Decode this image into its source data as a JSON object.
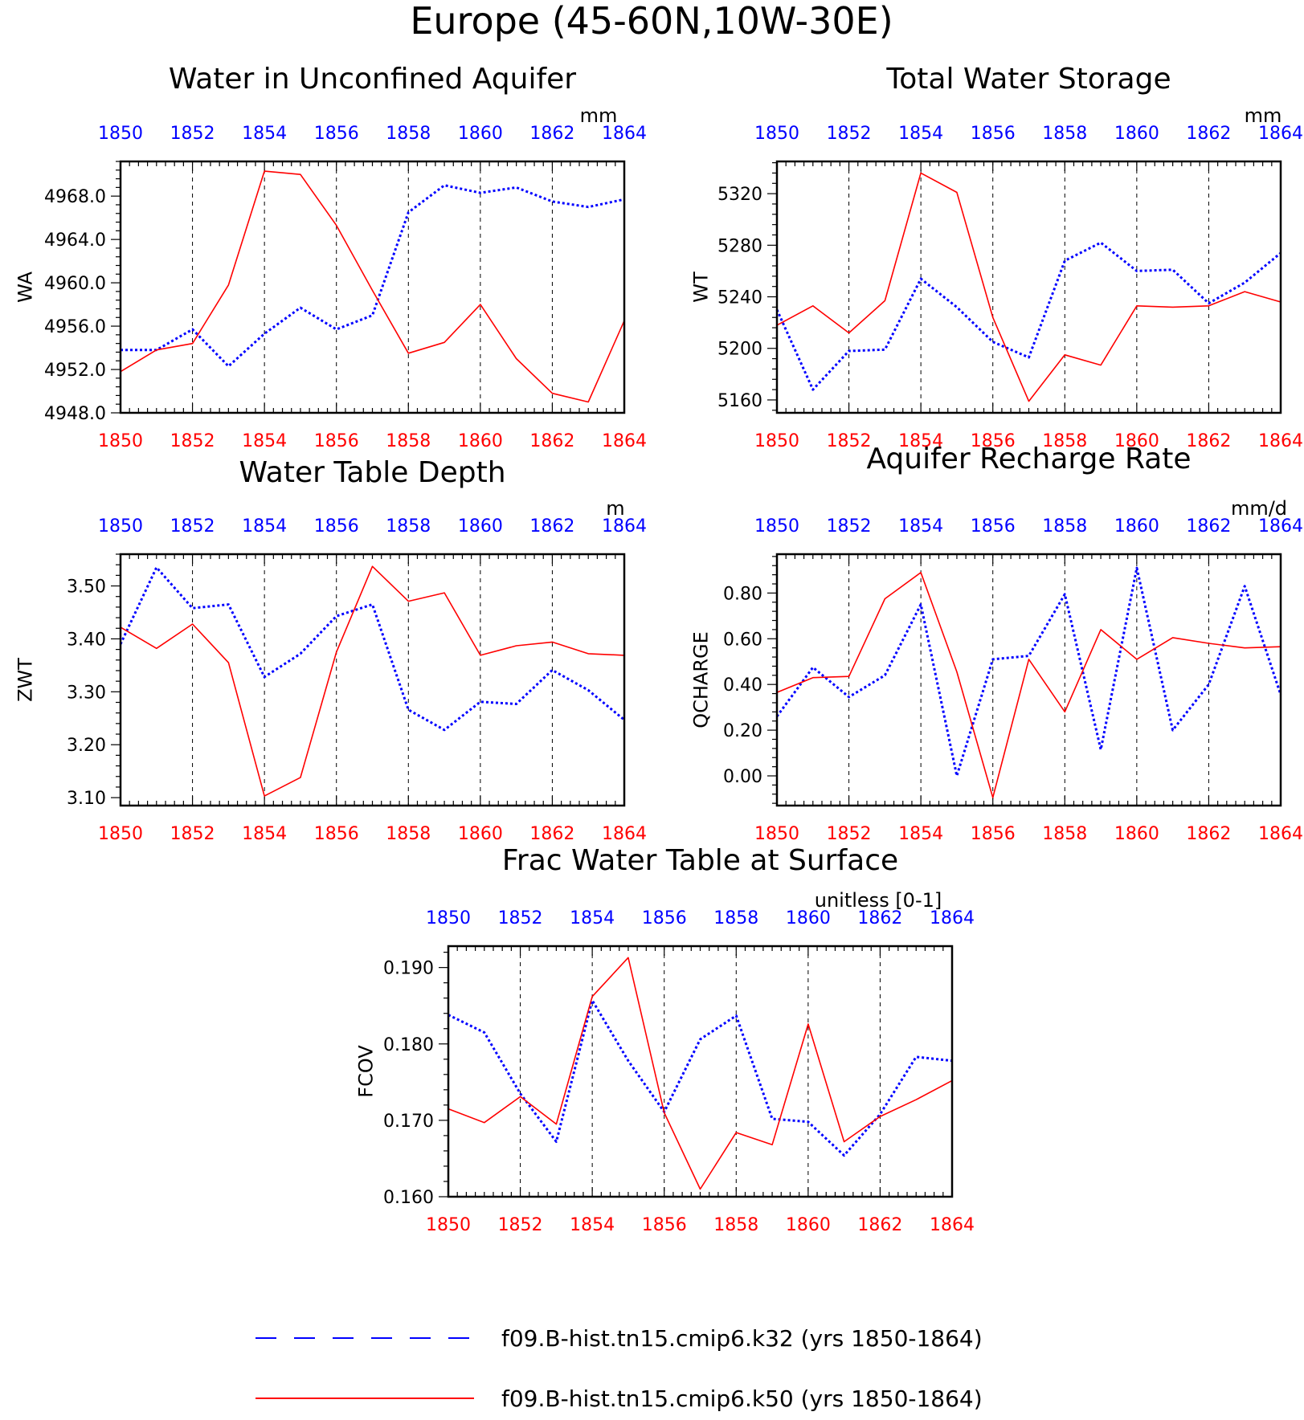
{
  "page_title": "Europe (45-60N,10W-30E)",
  "legend": [
    {
      "label": "f09.B-hist.tn15.cmip6.k32 (yrs 1850-1864)",
      "color": "#0000ff",
      "style": "dashed"
    },
    {
      "label": "f09.B-hist.tn15.cmip6.k50 (yrs 1850-1864)",
      "color": "#ff0000",
      "style": "solid"
    }
  ],
  "colors": {
    "k32": "#0000ff",
    "k50": "#ff0000",
    "axis": "#000000"
  },
  "chart_data": [
    {
      "type": "line",
      "title": "Water in Unconfined Aquifer",
      "units": "mm",
      "ylabel": "WA",
      "x": [
        1850,
        1851,
        1852,
        1853,
        1854,
        1855,
        1856,
        1857,
        1858,
        1859,
        1860,
        1861,
        1862,
        1863,
        1864
      ],
      "xlim": [
        1850,
        1864
      ],
      "xticks": [
        "1850",
        "1852",
        "1854",
        "1856",
        "1858",
        "1860",
        "1862",
        "1864"
      ],
      "ylim": [
        4948,
        4971.2
      ],
      "yticks": [
        "4948.0",
        "4952.0",
        "4956.0",
        "4960.0",
        "4964.0",
        "4968.0"
      ],
      "grid": "vertical-dashed",
      "series": [
        {
          "key": "k32",
          "values": [
            4953.8,
            4953.8,
            4955.7,
            4952.3,
            4955.3,
            4957.7,
            4955.7,
            4957.0,
            4966.5,
            4969.0,
            4968.3,
            4968.8,
            4967.5,
            4967.0,
            4967.7
          ]
        },
        {
          "key": "k50",
          "values": [
            4951.8,
            4953.8,
            4954.4,
            4959.8,
            4970.3,
            4970.0,
            4965.3,
            4959.3,
            4953.5,
            4954.5,
            4958.0,
            4953.0,
            4949.8,
            4949.0,
            4956.5
          ]
        }
      ]
    },
    {
      "type": "line",
      "title": "Total Water Storage",
      "units": "mm",
      "ylabel": "WT",
      "x": [
        1850,
        1851,
        1852,
        1853,
        1854,
        1855,
        1856,
        1857,
        1858,
        1859,
        1860,
        1861,
        1862,
        1863,
        1864
      ],
      "xlim": [
        1850,
        1864
      ],
      "xticks": [
        "1850",
        "1852",
        "1854",
        "1856",
        "1858",
        "1860",
        "1862",
        "1864"
      ],
      "ylim": [
        5150,
        5345
      ],
      "yticks": [
        "5160",
        "5200",
        "5240",
        "5280",
        "5320"
      ],
      "grid": "vertical-dashed",
      "series": [
        {
          "key": "k32",
          "values": [
            5230,
            5168,
            5198,
            5199,
            5254,
            5232,
            5205,
            5193,
            5268,
            5282,
            5260,
            5261,
            5235,
            5251,
            5274
          ]
        },
        {
          "key": "k50",
          "values": [
            5218,
            5233,
            5212,
            5237,
            5336,
            5321,
            5224,
            5159,
            5195,
            5187,
            5233,
            5232,
            5233,
            5244,
            5236
          ]
        }
      ]
    },
    {
      "type": "line",
      "title": "Water Table Depth",
      "units": "m",
      "ylabel": "ZWT",
      "x": [
        1850,
        1851,
        1852,
        1853,
        1854,
        1855,
        1856,
        1857,
        1858,
        1859,
        1860,
        1861,
        1862,
        1863,
        1864
      ],
      "xlim": [
        1850,
        1864
      ],
      "xticks": [
        "1850",
        "1852",
        "1854",
        "1856",
        "1858",
        "1860",
        "1862",
        "1864"
      ],
      "ylim": [
        3.085,
        3.56
      ],
      "yticks": [
        "3.10",
        "3.20",
        "3.30",
        "3.40",
        "3.50"
      ],
      "grid": "vertical-dashed",
      "series": [
        {
          "key": "k32",
          "values": [
            3.39,
            3.535,
            3.458,
            3.465,
            3.328,
            3.372,
            3.443,
            3.465,
            3.266,
            3.228,
            3.281,
            3.277,
            3.341,
            3.303,
            3.247
          ]
        },
        {
          "key": "k50",
          "values": [
            3.422,
            3.382,
            3.428,
            3.355,
            3.103,
            3.138,
            3.375,
            3.537,
            3.471,
            3.487,
            3.369,
            3.387,
            3.394,
            3.372,
            3.369
          ]
        }
      ]
    },
    {
      "type": "line",
      "title": "Aquifer Recharge Rate",
      "units": "mm/d",
      "ylabel": "QCHARGE",
      "x": [
        1850,
        1851,
        1852,
        1853,
        1854,
        1855,
        1856,
        1857,
        1858,
        1859,
        1860,
        1861,
        1862,
        1863,
        1864
      ],
      "xlim": [
        1850,
        1864
      ],
      "xticks": [
        "1850",
        "1852",
        "1854",
        "1856",
        "1858",
        "1860",
        "1862",
        "1864"
      ],
      "ylim": [
        -0.13,
        0.97
      ],
      "yticks": [
        "0.00",
        "0.20",
        "0.40",
        "0.60",
        "0.80"
      ],
      "grid": "vertical-dashed",
      "series": [
        {
          "key": "k32",
          "values": [
            0.26,
            0.475,
            0.345,
            0.44,
            0.75,
            0.0,
            0.51,
            0.525,
            0.795,
            0.115,
            0.91,
            0.2,
            0.4,
            0.83,
            0.355
          ]
        },
        {
          "key": "k50",
          "values": [
            0.365,
            0.43,
            0.435,
            0.775,
            0.89,
            0.455,
            -0.095,
            0.51,
            0.28,
            0.64,
            0.51,
            0.605,
            0.58,
            0.56,
            0.565
          ]
        }
      ]
    },
    {
      "type": "line",
      "title": "Frac Water Table at Surface",
      "units": "unitless [0-1]",
      "ylabel": "FCOV",
      "x": [
        1850,
        1851,
        1852,
        1853,
        1854,
        1855,
        1856,
        1857,
        1858,
        1859,
        1860,
        1861,
        1862,
        1863,
        1864
      ],
      "xlim": [
        1850,
        1864
      ],
      "xticks": [
        "1850",
        "1852",
        "1854",
        "1856",
        "1858",
        "1860",
        "1862",
        "1864"
      ],
      "ylim": [
        0.16,
        0.1928
      ],
      "yticks": [
        "0.160",
        "0.170",
        "0.180",
        "0.190"
      ],
      "grid": "vertical-dashed",
      "series": [
        {
          "key": "k32",
          "values": [
            0.1838,
            0.1815,
            0.1735,
            0.1672,
            0.1857,
            0.1778,
            0.1711,
            0.1806,
            0.1837,
            0.1702,
            0.1698,
            0.1654,
            0.1708,
            0.1783,
            0.1778
          ]
        },
        {
          "key": "k50",
          "values": [
            0.1715,
            0.1697,
            0.1731,
            0.1695,
            0.1862,
            0.1913,
            0.171,
            0.161,
            0.1684,
            0.1668,
            0.1826,
            0.1672,
            0.1705,
            0.1727,
            0.1752
          ]
        }
      ]
    }
  ]
}
